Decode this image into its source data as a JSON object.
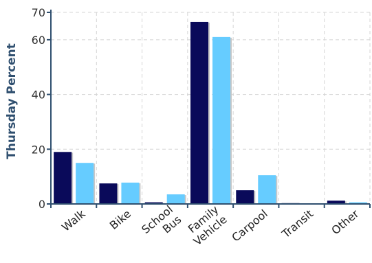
{
  "chart_data": {
    "type": "bar",
    "title": "",
    "xlabel": "",
    "ylabel": "Thursday Percent",
    "categories": [
      [
        "Walk"
      ],
      [
        "Bike"
      ],
      [
        "School",
        "Bus"
      ],
      [
        "Family",
        "Vehicle"
      ],
      [
        "Carpool"
      ],
      [
        "Transit"
      ],
      [
        "Other"
      ]
    ],
    "series": [
      {
        "values": [
          19,
          7.5,
          0.6,
          66.5,
          5,
          0.3,
          1.2
        ],
        "color": "#0a0a5a"
      },
      {
        "values": [
          15,
          7.8,
          3.5,
          61,
          10.5,
          0.2,
          0.6
        ],
        "color": "#66ccff"
      }
    ],
    "ylim": [
      0,
      70
    ],
    "yticks": [
      0,
      20,
      40,
      60,
      70
    ],
    "grid": true,
    "legend": "none"
  }
}
